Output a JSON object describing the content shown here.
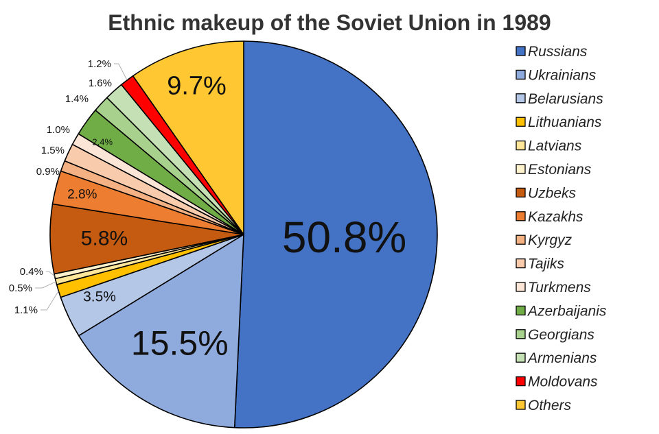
{
  "chart_data": {
    "type": "pie",
    "title": "Ethnic makeup of the Soviet Union in 1989",
    "legend_position": "right",
    "categories": [
      "Russians",
      "Ukrainians",
      "Belarusians",
      "Lithuanians",
      "Latvians",
      "Estonians",
      "Uzbeks",
      "Kazakhs",
      "Kyrgyz",
      "Tajiks",
      "Turkmens",
      "Azerbaijanis",
      "Georgians",
      "Armenians",
      "Moldovans",
      "Others"
    ],
    "values": [
      50.8,
      15.5,
      3.5,
      1.1,
      0.5,
      0.4,
      5.8,
      2.8,
      0.9,
      1.5,
      1.0,
      2.4,
      1.4,
      1.6,
      1.2,
      9.7
    ],
    "labels": [
      "50.8%",
      "15.5%",
      "3.5%",
      "1.1%",
      "0.5%",
      "0.4%",
      "5.8%",
      "2.8%",
      "0.9%",
      "1.5%",
      "1.0%",
      "2.4%",
      "1.4%",
      "1.6%",
      "1.2%",
      "9.7%"
    ],
    "colors": [
      "#4472C4",
      "#8FAADC",
      "#B4C7E7",
      "#FFC000",
      "#FFE699",
      "#FFF2CC",
      "#C55A11",
      "#ED7D31",
      "#F4B183",
      "#F8CBAD",
      "#FBE5D6",
      "#70AD47",
      "#A9D18E",
      "#C5E0B4",
      "#FF0000",
      "#FFC832"
    ]
  }
}
